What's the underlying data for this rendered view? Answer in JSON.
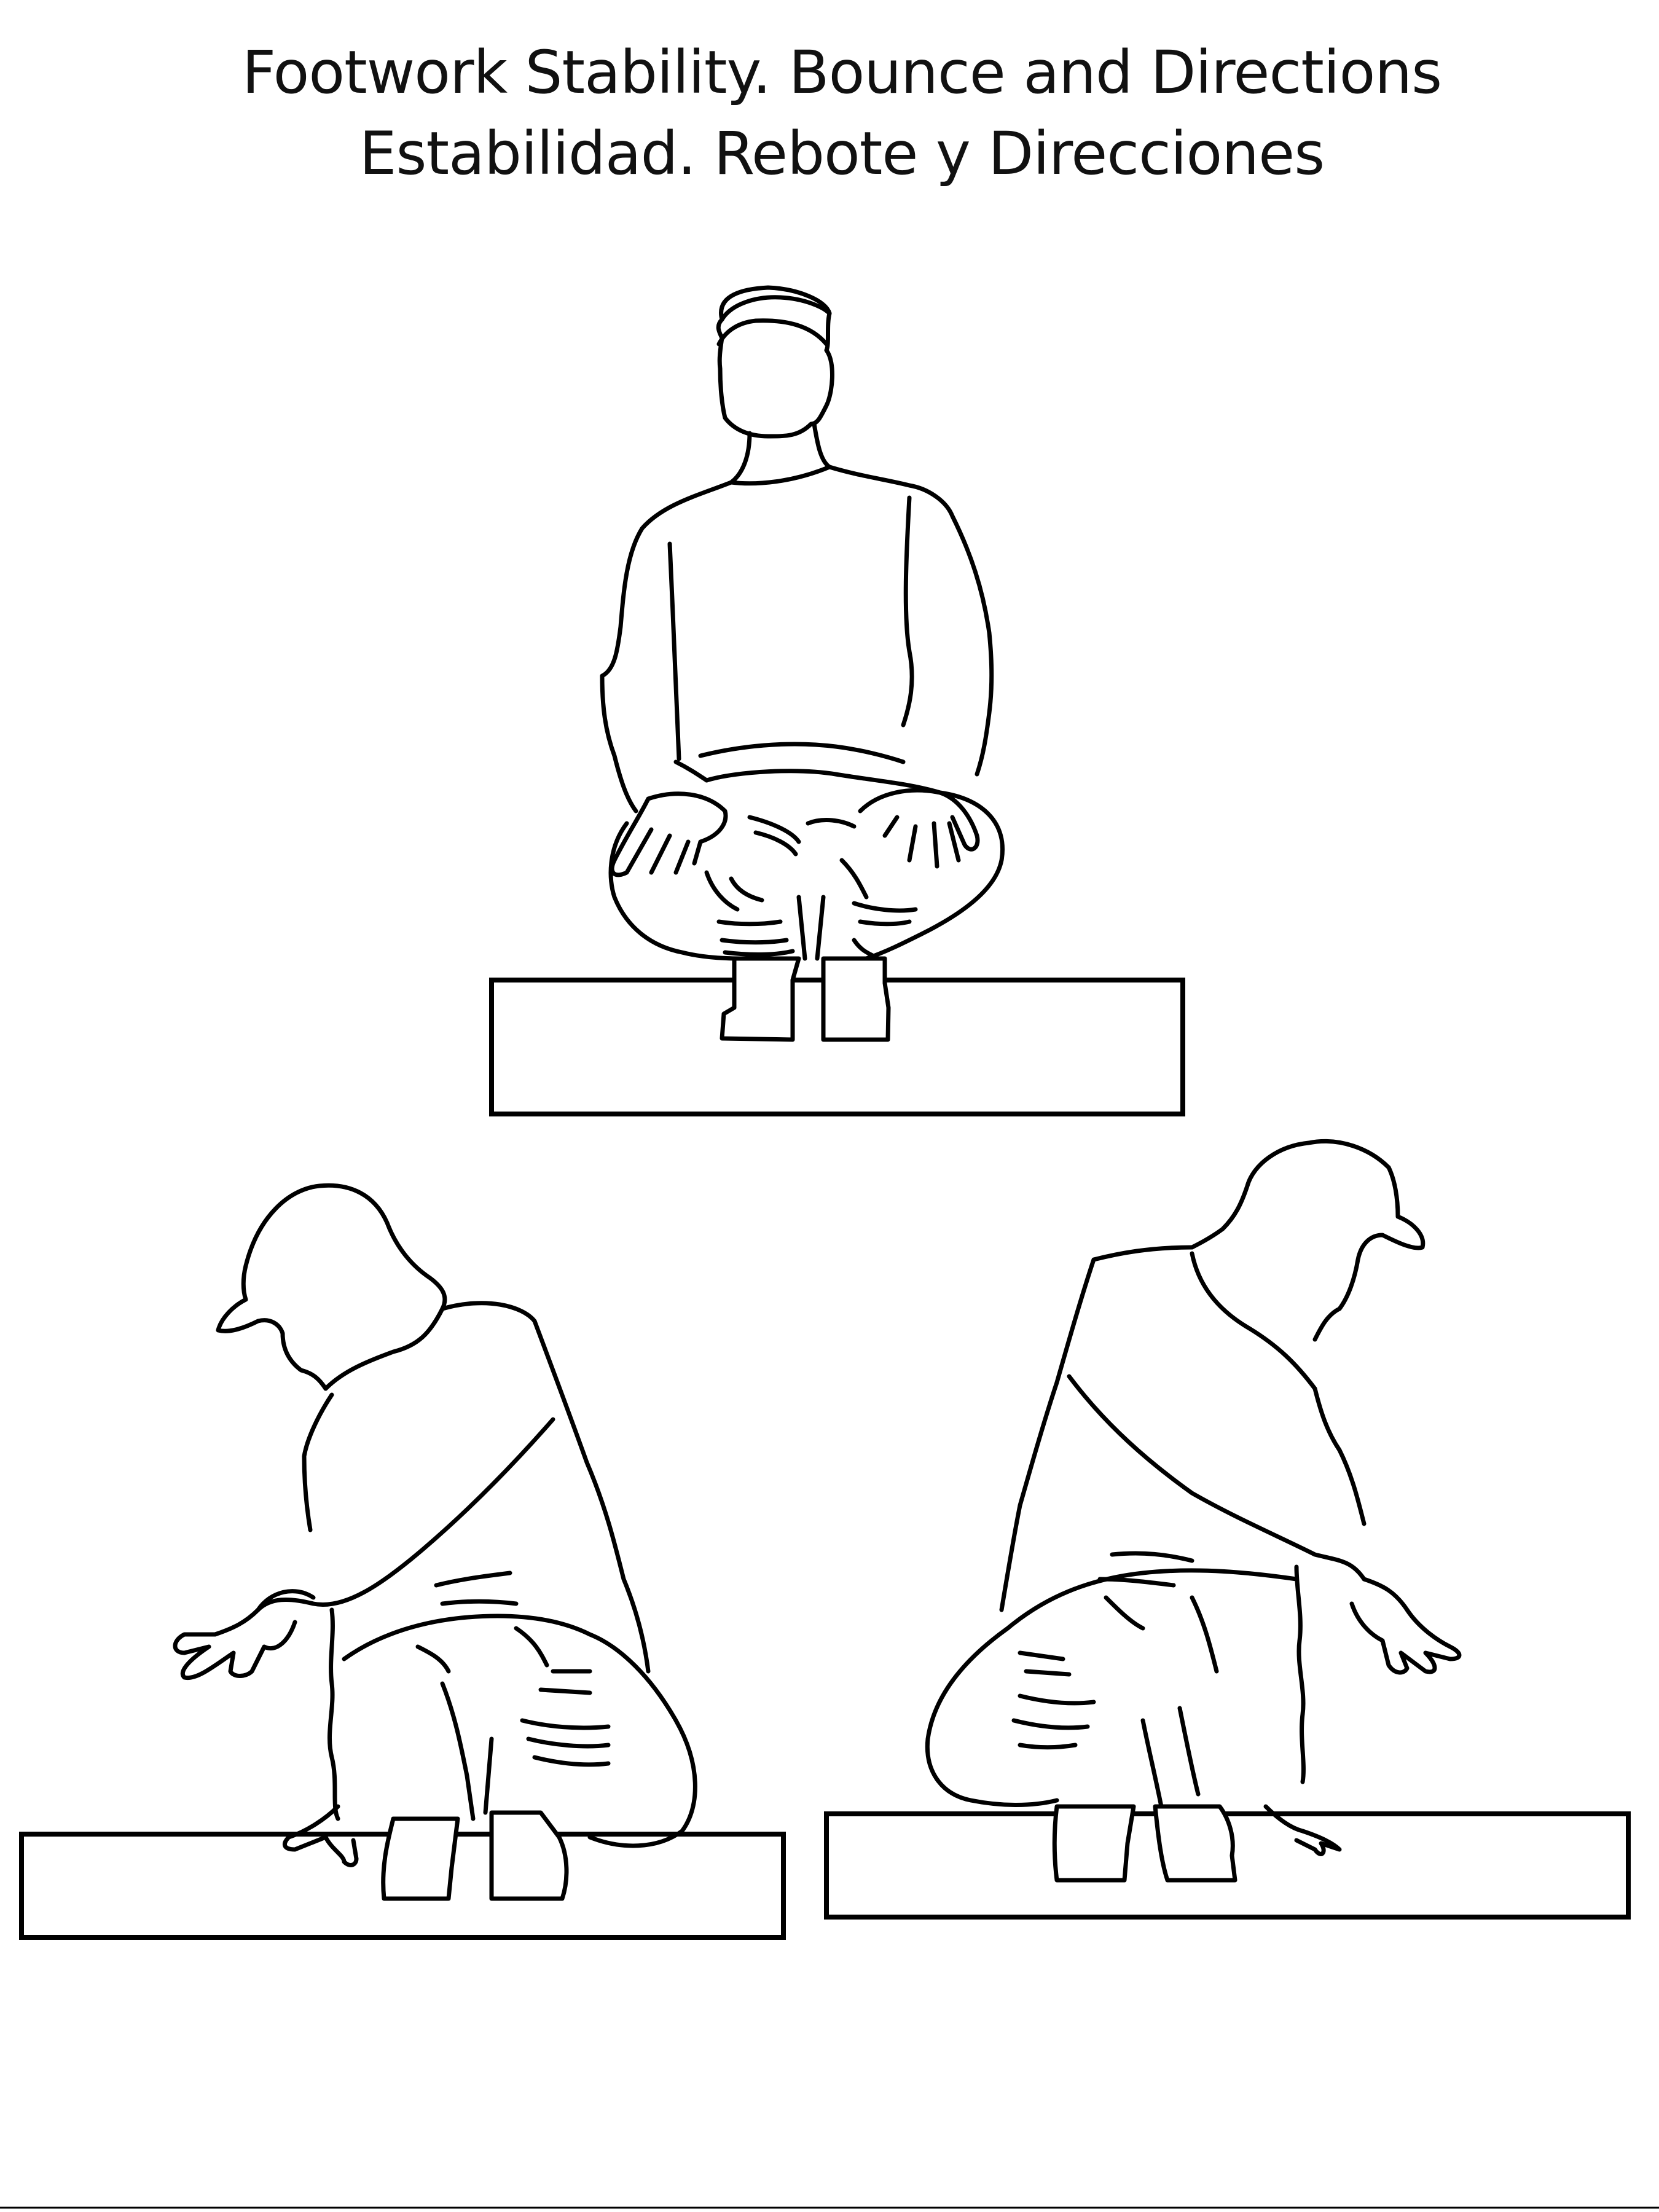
{
  "title": {
    "line_en": "Footwork Stability. Bounce and Directions",
    "line_es": "Estabilidad. Rebote y Direcciones"
  },
  "figures": {
    "top_center": "squat-facing-front",
    "bottom_left": "squat-leaning-left-hand-on-step",
    "bottom_right": "squat-leaning-right-hand-on-step"
  },
  "colors": {
    "ink": "#000000",
    "background": "#ffffff"
  }
}
